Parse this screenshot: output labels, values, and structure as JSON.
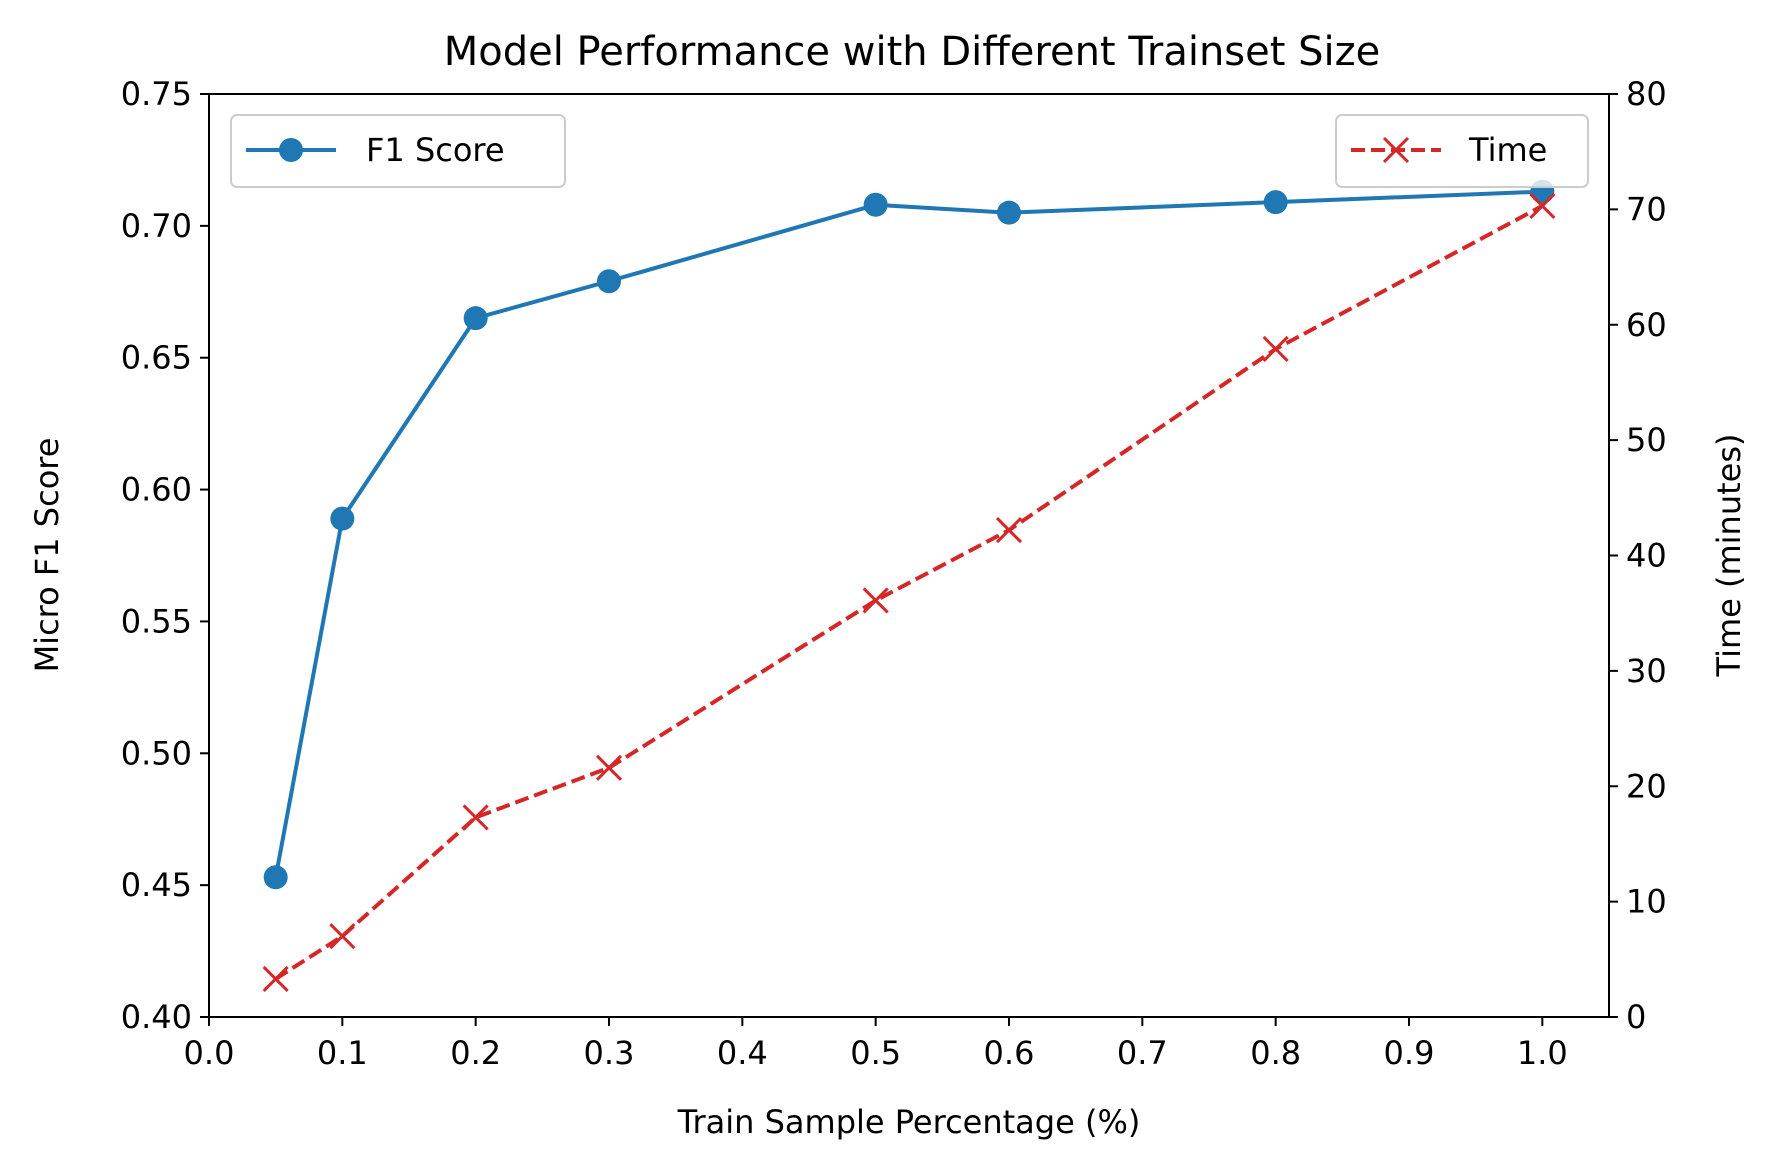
{
  "chart_data": {
    "type": "line",
    "title": "Model Performance with Different Trainset Size",
    "xlabel": "Train Sample Percentage (%)",
    "ylabel": "Micro F1 Score",
    "y2label": "Time (minutes)",
    "xlim": [
      0.0,
      1.05
    ],
    "ylim": [
      0.4,
      0.75
    ],
    "y2lim": [
      0,
      80
    ],
    "xticks": [
      "0.0",
      "0.1",
      "0.2",
      "0.3",
      "0.4",
      "0.5",
      "0.6",
      "0.7",
      "0.8",
      "0.9",
      "1.0"
    ],
    "yticks": [
      "0.40",
      "0.45",
      "0.50",
      "0.55",
      "0.60",
      "0.65",
      "0.70",
      "0.75"
    ],
    "y2ticks": [
      "0",
      "10",
      "20",
      "30",
      "40",
      "50",
      "60",
      "70",
      "80"
    ],
    "x": [
      0.05,
      0.1,
      0.2,
      0.3,
      0.5,
      0.6,
      0.8,
      1.0
    ],
    "grid": false,
    "series": [
      {
        "name": "F1 Score",
        "axis": "left",
        "color": "#1f77b4",
        "marker": "circle",
        "linestyle": "solid",
        "legend_position": "top-left",
        "values": [
          0.453,
          0.589,
          0.665,
          0.679,
          0.708,
          0.705,
          0.709,
          0.713
        ]
      },
      {
        "name": "Time",
        "axis": "right",
        "color": "#d62728",
        "marker": "x",
        "linestyle": "dashed",
        "legend_position": "top-right",
        "values": [
          3.3,
          7.0,
          17.3,
          21.6,
          36.1,
          42.2,
          57.9,
          70.3
        ]
      }
    ]
  }
}
